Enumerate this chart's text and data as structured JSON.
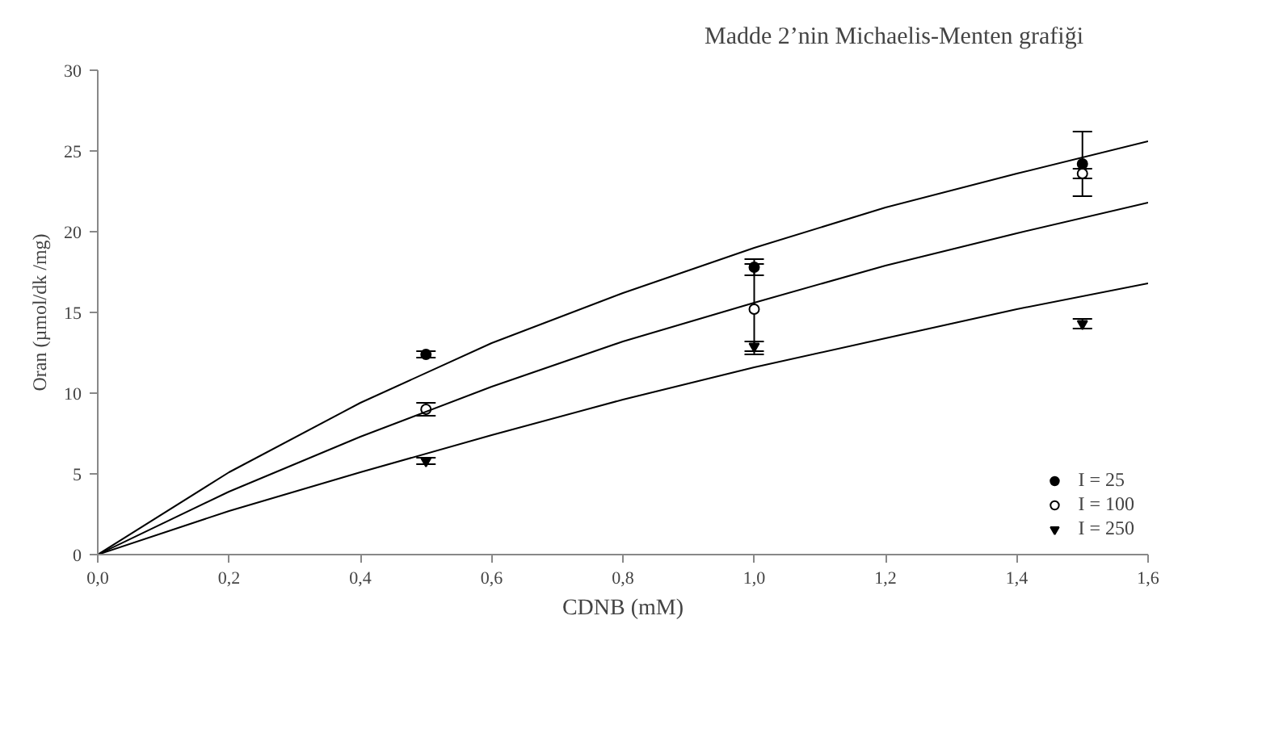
{
  "chart_data": {
    "type": "scatter",
    "title": "Madde 2’nin Michaelis-Menten grafiği",
    "xlabel": "CDNB (mM)",
    "ylabel": "Oran (µmol/dk /mg)",
    "xlim": [
      0,
      1.6
    ],
    "xticks": [
      {
        "value": 0,
        "label": "0,0"
      },
      {
        "value": 0.2,
        "label": "0,2"
      },
      {
        "value": 0.4,
        "label": "0,4"
      },
      {
        "value": 0.6,
        "label": "0,6"
      },
      {
        "value": 0.8,
        "label": "0,8"
      },
      {
        "value": 1.0,
        "label": "1,0"
      },
      {
        "value": 1.2,
        "label": "1,2"
      },
      {
        "value": 1.4,
        "label": "1,4"
      },
      {
        "value": 1.6,
        "label": "1,6"
      }
    ],
    "ylim": [
      0,
      30
    ],
    "yticks": [
      0,
      5,
      10,
      15,
      20,
      25,
      30
    ],
    "grid": false,
    "legend": "bottom right",
    "series": [
      {
        "name": "I = 25",
        "marker": "circle",
        "color": "#000000",
        "x": [
          0.5,
          1.0,
          1.5
        ],
        "values": [
          12.4,
          17.8,
          24.2
        ],
        "errors": [
          0.2,
          0.5,
          2.0
        ]
      },
      {
        "name": "I = 100",
        "marker": "circle",
        "color": "#ffffff",
        "x": [
          0.5,
          1.0,
          1.5
        ],
        "values": [
          9.0,
          15.2,
          23.6
        ],
        "errors": [
          0.4,
          2.8,
          0.3
        ]
      },
      {
        "name": "I = 250",
        "marker": "triangle",
        "color": "#000000",
        "x": [
          0.5,
          1.0,
          1.5
        ],
        "values": [
          5.8,
          12.9,
          14.3
        ],
        "errors": [
          0.2,
          0.3,
          0.3
        ]
      },
      {
        "type": "line",
        "color": "#000000",
        "x": [
          0,
          0.2,
          0.4,
          0.6,
          0.8,
          1.0,
          1.2,
          1.4,
          1.6
        ],
        "values": [
          0,
          5.1,
          9.4,
          13.1,
          16.2,
          19.0,
          21.5,
          23.6,
          25.6
        ]
      },
      {
        "type": "line",
        "color": "#000000",
        "x": [
          0,
          0.2,
          0.4,
          0.6,
          0.8,
          1.0,
          1.2,
          1.4,
          1.6
        ],
        "values": [
          0,
          3.9,
          7.3,
          10.4,
          13.2,
          15.6,
          17.9,
          19.9,
          21.8
        ]
      },
      {
        "type": "line",
        "color": "#000000",
        "x": [
          0,
          0.2,
          0.4,
          0.6,
          0.8,
          1.0,
          1.2,
          1.4,
          1.6
        ],
        "values": [
          0,
          2.7,
          5.1,
          7.4,
          9.6,
          11.6,
          13.4,
          15.2,
          16.8
        ]
      }
    ]
  }
}
